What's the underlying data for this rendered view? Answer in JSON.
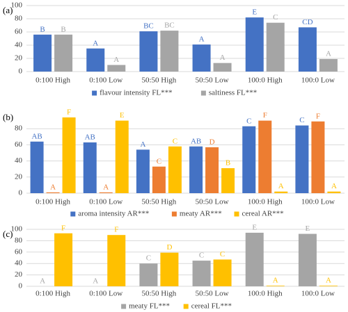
{
  "chart_data": [
    {
      "type": "bar",
      "panel": "(a)",
      "categories": [
        "0:100 High",
        "0:100 Low",
        "50:50 High",
        "50:50 Low",
        "100:0 High",
        "100:0 Low"
      ],
      "series": [
        {
          "name": "flavour intensity FL***",
          "color": "#4472c4",
          "values": [
            56,
            35,
            61,
            41,
            82,
            67
          ],
          "letters": [
            "B",
            "A",
            "BC",
            "A",
            "E",
            "CD"
          ]
        },
        {
          "name": "saltiness FL***",
          "color": "#a5a5a5",
          "values": [
            56,
            10,
            62,
            13,
            74,
            19
          ],
          "letters": [
            "B",
            "A",
            "BC",
            "A",
            "C",
            "A"
          ]
        }
      ],
      "ylim": [
        0,
        100
      ],
      "yticks": [
        0,
        20,
        40,
        60,
        80,
        100
      ],
      "grid": true,
      "legend": "bottom"
    },
    {
      "type": "bar",
      "panel": "(b)",
      "categories": [
        "0:100 High",
        "0:100 Low",
        "50:50 High",
        "50:50 Low",
        "100:0 High",
        "100:0 Low"
      ],
      "series": [
        {
          "name": "aroma intensity AR***",
          "color": "#4472c4",
          "values": [
            64,
            63,
            54,
            58,
            83,
            84
          ],
          "letters": [
            "AB",
            "AB",
            "A",
            "AB",
            "C",
            "C"
          ]
        },
        {
          "name": "meaty AR***",
          "color": "#ed7d31",
          "values": [
            1,
            1,
            33,
            57,
            90,
            89
          ],
          "letters": [
            "A",
            "A",
            "C",
            "D",
            "F",
            "F"
          ]
        },
        {
          "name": "cereal AR***",
          "color": "#ffc000",
          "values": [
            94,
            90,
            58,
            31,
            2,
            2
          ],
          "letters": [
            "F",
            "E",
            "C",
            "B",
            "A",
            "A"
          ]
        }
      ],
      "ylim": [
        0,
        100
      ],
      "yticks": [
        0,
        20,
        40,
        60,
        80
      ],
      "grid": true,
      "legend": "bottom"
    },
    {
      "type": "bar",
      "panel": "(c)",
      "categories": [
        "0:100 High",
        "0:100 Low",
        "50:50 High",
        "50:50 Low",
        "100:0 High",
        "100:0 Low"
      ],
      "series": [
        {
          "name": "meaty FL***",
          "color": "#a5a5a5",
          "values": [
            0,
            0,
            40,
            45,
            94,
            92
          ],
          "letters": [
            "A",
            "A",
            "C",
            "C",
            "E",
            "E"
          ]
        },
        {
          "name": "cereal FL***",
          "color": "#ffc000",
          "values": [
            93,
            90,
            59,
            47,
            1,
            1
          ],
          "letters": [
            "F",
            "F",
            "D",
            "C",
            "A",
            "A"
          ]
        }
      ],
      "ylim": [
        0,
        100
      ],
      "yticks": [
        0,
        20,
        40,
        60,
        80,
        100
      ],
      "grid": true,
      "legend": "bottom"
    }
  ]
}
